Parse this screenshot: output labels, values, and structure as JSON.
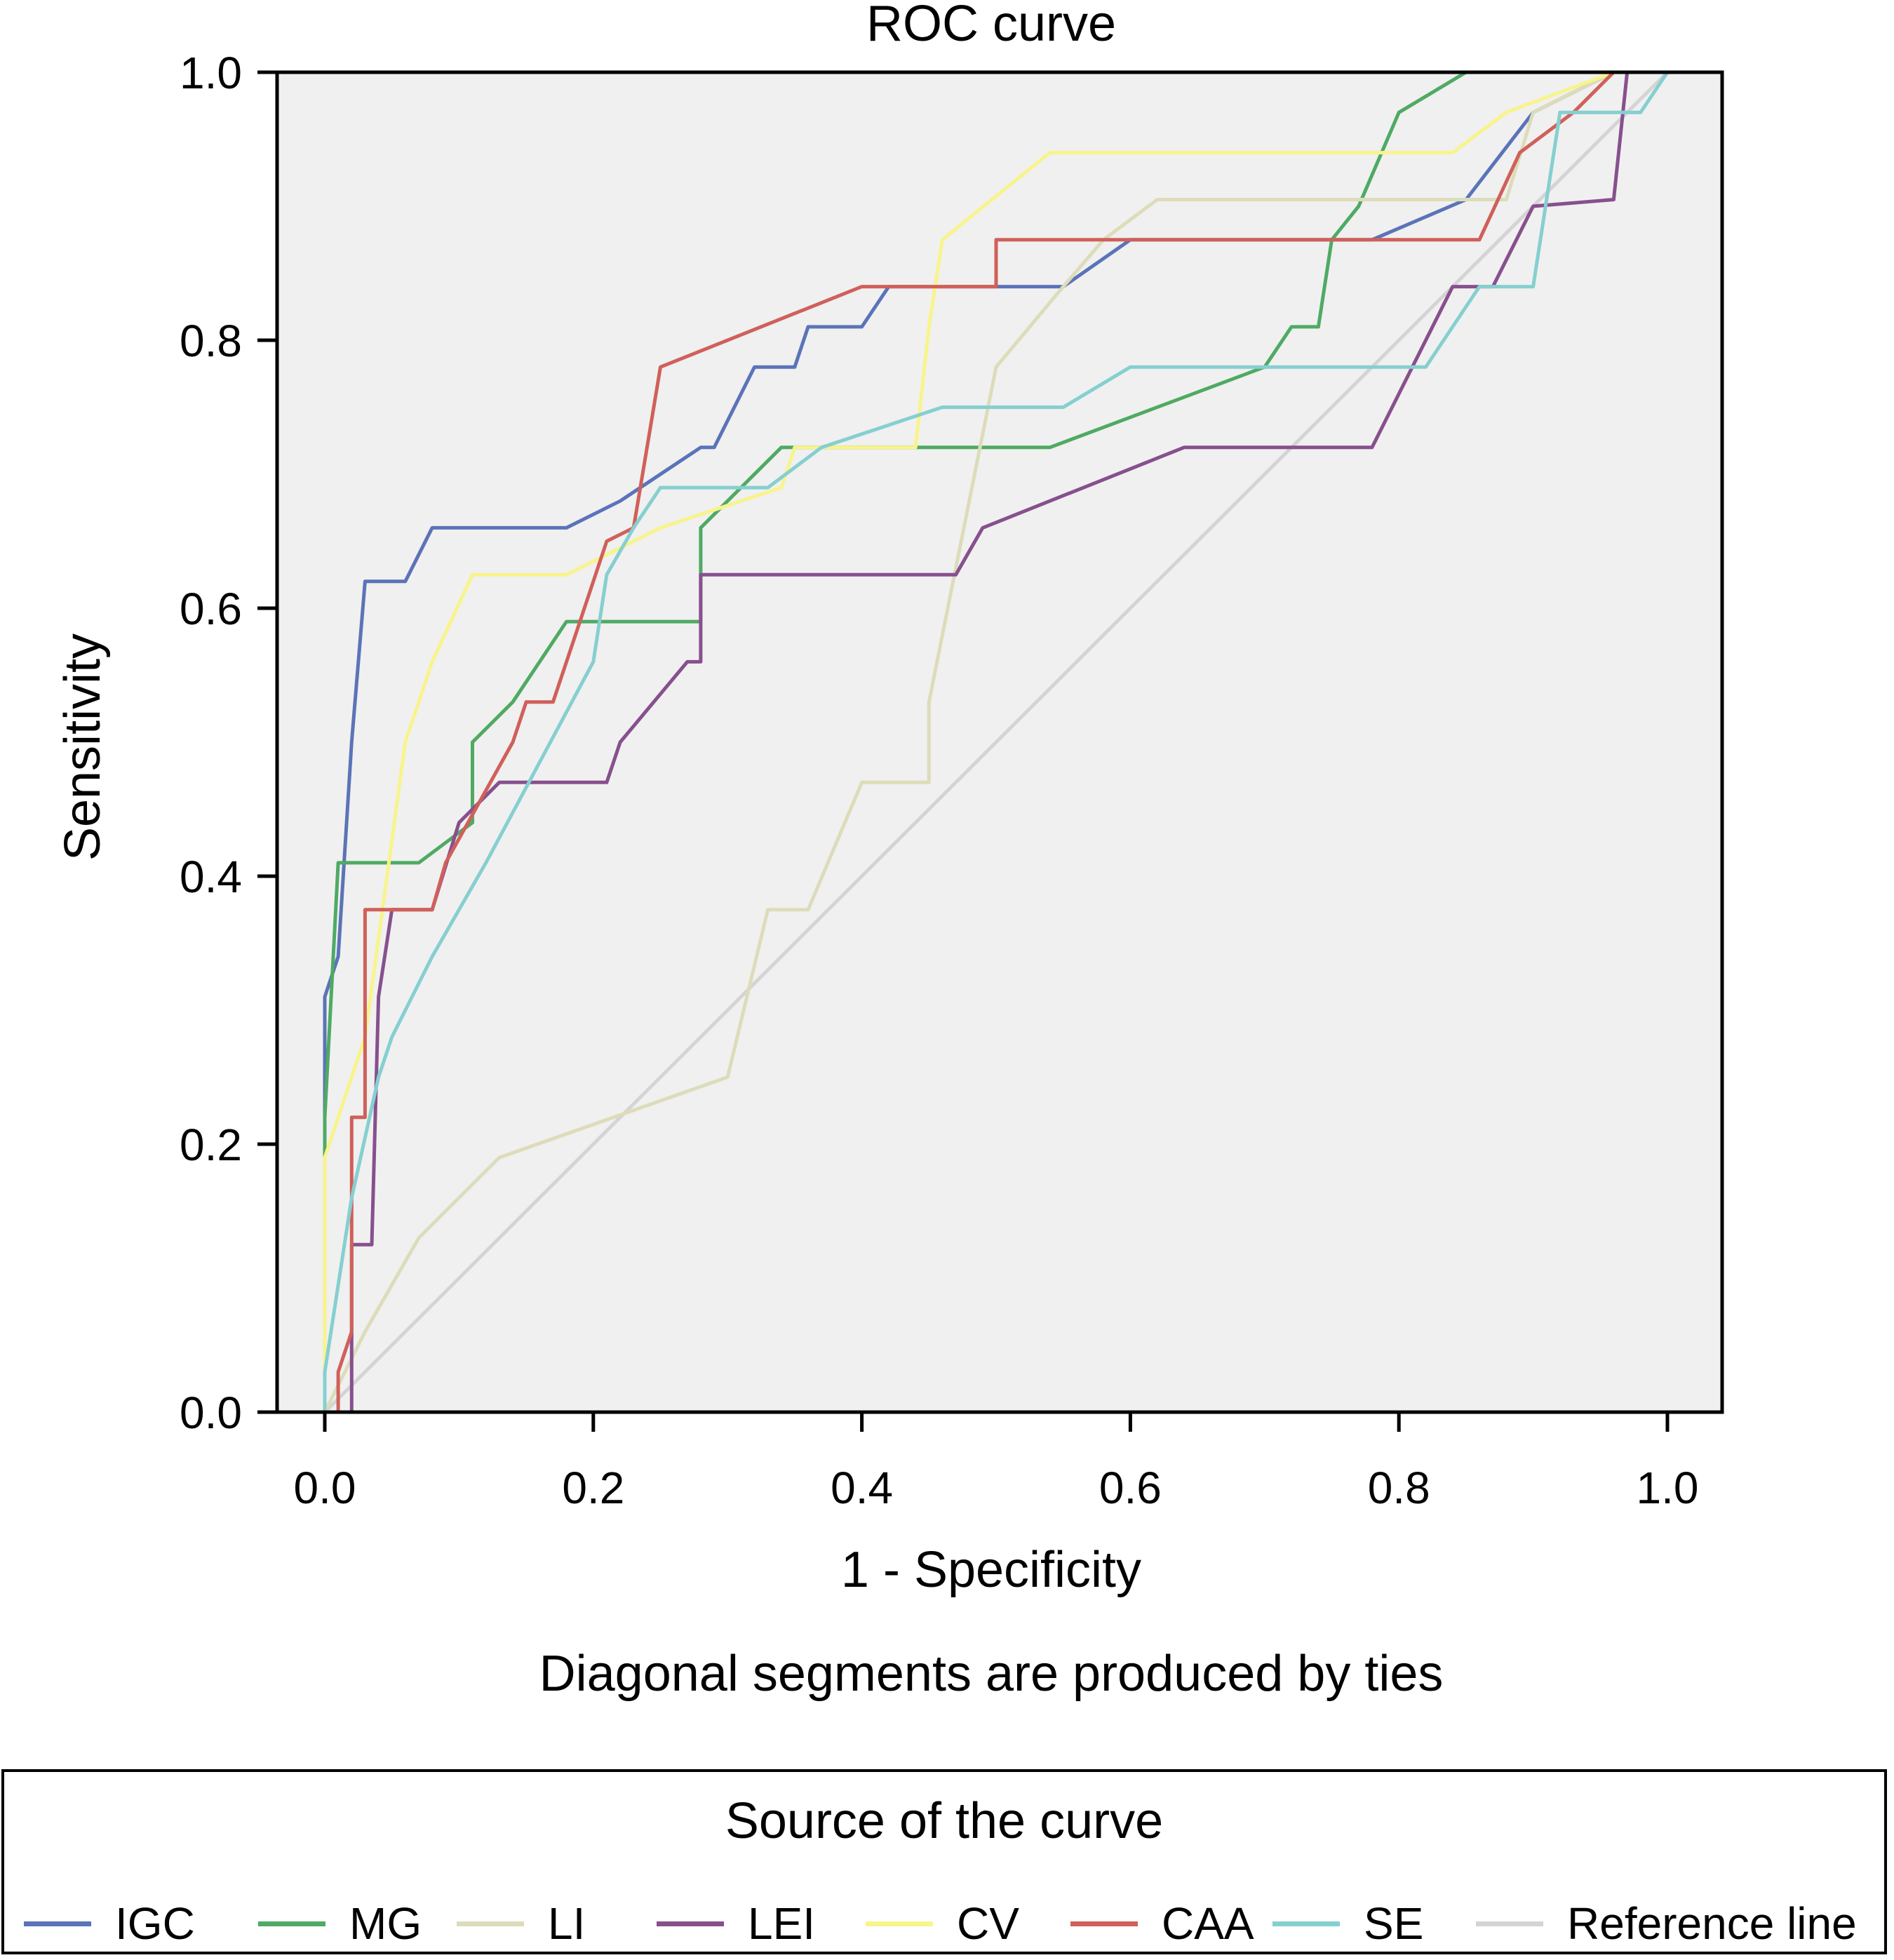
{
  "chart_data": {
    "type": "line",
    "title": "ROC curve",
    "xlabel": "1 - Specificity",
    "ylabel": "Sensitivity",
    "note": "Diagonal segments are produced by ties",
    "xlim": [
      0,
      1
    ],
    "ylim": [
      0,
      1
    ],
    "xticks": [
      "0.0",
      "0.2",
      "0.4",
      "0.6",
      "0.8",
      "1.0"
    ],
    "yticks": [
      "0.0",
      "0.2",
      "0.4",
      "0.6",
      "0.8",
      "1.0"
    ],
    "grid": false,
    "background": "#f0f0f0",
    "legend": {
      "title": "Source of the curve",
      "placement": "bottom"
    },
    "series": [
      {
        "name": "IGC",
        "color": "#5b73b8",
        "points": [
          [
            0,
            0
          ],
          [
            0,
            0.31
          ],
          [
            0.01,
            0.34
          ],
          [
            0.02,
            0.5
          ],
          [
            0.03,
            0.62
          ],
          [
            0.06,
            0.62
          ],
          [
            0.08,
            0.66
          ],
          [
            0.18,
            0.66
          ],
          [
            0.22,
            0.68
          ],
          [
            0.25,
            0.7
          ],
          [
            0.28,
            0.72
          ],
          [
            0.29,
            0.72
          ],
          [
            0.32,
            0.78
          ],
          [
            0.35,
            0.78
          ],
          [
            0.36,
            0.81
          ],
          [
            0.4,
            0.81
          ],
          [
            0.42,
            0.84
          ],
          [
            0.55,
            0.84
          ],
          [
            0.6,
            0.875
          ],
          [
            0.78,
            0.875
          ],
          [
            0.85,
            0.905
          ],
          [
            0.9,
            0.97
          ],
          [
            0.96,
            1.0
          ],
          [
            1.0,
            1.0
          ]
        ]
      },
      {
        "name": "MG",
        "color": "#4faa63",
        "points": [
          [
            0,
            0
          ],
          [
            0,
            0.22
          ],
          [
            0.01,
            0.41
          ],
          [
            0.07,
            0.41
          ],
          [
            0.11,
            0.44
          ],
          [
            0.11,
            0.5
          ],
          [
            0.14,
            0.53
          ],
          [
            0.18,
            0.59
          ],
          [
            0.28,
            0.59
          ],
          [
            0.28,
            0.66
          ],
          [
            0.31,
            0.69
          ],
          [
            0.34,
            0.72
          ],
          [
            0.54,
            0.72
          ],
          [
            0.7,
            0.78
          ],
          [
            0.72,
            0.81
          ],
          [
            0.74,
            0.81
          ],
          [
            0.75,
            0.875
          ],
          [
            0.77,
            0.9
          ],
          [
            0.8,
            0.97
          ],
          [
            0.85,
            1.0
          ],
          [
            1.0,
            1.0
          ]
        ]
      },
      {
        "name": "LI",
        "color": "#dddcba",
        "points": [
          [
            0,
            0
          ],
          [
            0.03,
            0.06
          ],
          [
            0.07,
            0.13
          ],
          [
            0.13,
            0.19
          ],
          [
            0.3,
            0.25
          ],
          [
            0.33,
            0.375
          ],
          [
            0.36,
            0.375
          ],
          [
            0.4,
            0.47
          ],
          [
            0.45,
            0.47
          ],
          [
            0.45,
            0.53
          ],
          [
            0.5,
            0.78
          ],
          [
            0.55,
            0.84
          ],
          [
            0.58,
            0.875
          ],
          [
            0.62,
            0.905
          ],
          [
            0.88,
            0.905
          ],
          [
            0.9,
            0.97
          ],
          [
            0.96,
            1.0
          ],
          [
            1.0,
            1.0
          ]
        ]
      },
      {
        "name": "LEI",
        "color": "#87508d",
        "points": [
          [
            0,
            0
          ],
          [
            0.02,
            0
          ],
          [
            0.02,
            0.125
          ],
          [
            0.035,
            0.125
          ],
          [
            0.04,
            0.31
          ],
          [
            0.05,
            0.375
          ],
          [
            0.08,
            0.375
          ],
          [
            0.1,
            0.44
          ],
          [
            0.13,
            0.47
          ],
          [
            0.21,
            0.47
          ],
          [
            0.22,
            0.5
          ],
          [
            0.27,
            0.56
          ],
          [
            0.28,
            0.56
          ],
          [
            0.28,
            0.625
          ],
          [
            0.47,
            0.625
          ],
          [
            0.49,
            0.66
          ],
          [
            0.64,
            0.72
          ],
          [
            0.78,
            0.72
          ],
          [
            0.84,
            0.84
          ],
          [
            0.87,
            0.84
          ],
          [
            0.9,
            0.9
          ],
          [
            0.96,
            0.905
          ],
          [
            0.97,
            1.0
          ],
          [
            1.0,
            1.0
          ]
        ]
      },
      {
        "name": "CV",
        "color": "#f8f48c",
        "points": [
          [
            0,
            0
          ],
          [
            0,
            0.19
          ],
          [
            0.01,
            0.22
          ],
          [
            0.03,
            0.28
          ],
          [
            0.06,
            0.5
          ],
          [
            0.08,
            0.56
          ],
          [
            0.11,
            0.625
          ],
          [
            0.18,
            0.625
          ],
          [
            0.25,
            0.66
          ],
          [
            0.34,
            0.69
          ],
          [
            0.35,
            0.72
          ],
          [
            0.44,
            0.72
          ],
          [
            0.45,
            0.81
          ],
          [
            0.46,
            0.875
          ],
          [
            0.54,
            0.94
          ],
          [
            0.84,
            0.94
          ],
          [
            0.88,
            0.97
          ],
          [
            0.96,
            1.0
          ],
          [
            1.0,
            1.0
          ]
        ]
      },
      {
        "name": "CAA",
        "color": "#d0605a",
        "points": [
          [
            0,
            0
          ],
          [
            0.01,
            0
          ],
          [
            0.01,
            0.03
          ],
          [
            0.02,
            0.06
          ],
          [
            0.02,
            0.22
          ],
          [
            0.03,
            0.22
          ],
          [
            0.03,
            0.375
          ],
          [
            0.08,
            0.375
          ],
          [
            0.09,
            0.41
          ],
          [
            0.14,
            0.5
          ],
          [
            0.15,
            0.53
          ],
          [
            0.17,
            0.53
          ],
          [
            0.19,
            0.59
          ],
          [
            0.21,
            0.65
          ],
          [
            0.23,
            0.66
          ],
          [
            0.24,
            0.72
          ],
          [
            0.25,
            0.78
          ],
          [
            0.4,
            0.84
          ],
          [
            0.5,
            0.84
          ],
          [
            0.5,
            0.875
          ],
          [
            0.86,
            0.875
          ],
          [
            0.89,
            0.94
          ],
          [
            0.93,
            0.97
          ],
          [
            0.96,
            1.0
          ],
          [
            1.0,
            1.0
          ]
        ]
      },
      {
        "name": "SE",
        "color": "#86cfd0",
        "points": [
          [
            0,
            0
          ],
          [
            0,
            0.03
          ],
          [
            0.02,
            0.16
          ],
          [
            0.04,
            0.25
          ],
          [
            0.05,
            0.28
          ],
          [
            0.08,
            0.34
          ],
          [
            0.1,
            0.375
          ],
          [
            0.12,
            0.41
          ],
          [
            0.2,
            0.56
          ],
          [
            0.21,
            0.625
          ],
          [
            0.23,
            0.66
          ],
          [
            0.25,
            0.69
          ],
          [
            0.33,
            0.69
          ],
          [
            0.37,
            0.72
          ],
          [
            0.46,
            0.75
          ],
          [
            0.55,
            0.75
          ],
          [
            0.6,
            0.78
          ],
          [
            0.82,
            0.78
          ],
          [
            0.86,
            0.84
          ],
          [
            0.9,
            0.84
          ],
          [
            0.92,
            0.97
          ],
          [
            0.98,
            0.97
          ],
          [
            1.0,
            1.0
          ]
        ]
      },
      {
        "name": "Reference line",
        "color": "#d4d4d4",
        "points": [
          [
            0,
            0
          ],
          [
            1,
            1
          ]
        ]
      }
    ]
  }
}
